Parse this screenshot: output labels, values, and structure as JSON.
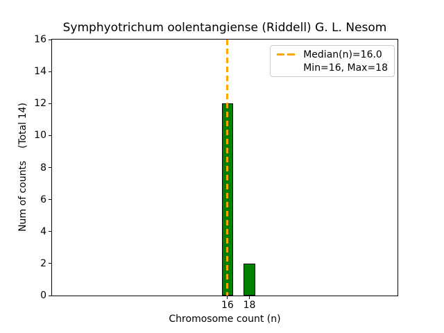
{
  "chart_data": {
    "type": "bar",
    "title": "Symphyotrichum oolentangiense (Riddell) G. L. Nesom",
    "xlabel": "Chromosome count (n)",
    "ylabel": "Num of counts    (Total 14)",
    "categories": [
      16,
      18
    ],
    "values": [
      12,
      2
    ],
    "total": 14,
    "bar_color": "#008000",
    "bar_edge_color": "#000000",
    "bar_width": 1.05,
    "xlim": [
      0,
      31.5
    ],
    "ylim": [
      0,
      16
    ],
    "xticks": [
      16,
      18
    ],
    "yticks": [
      0,
      2,
      4,
      6,
      8,
      10,
      12,
      14,
      16
    ],
    "grid": false,
    "background": "#ffffff",
    "median_line": {
      "x": 16,
      "value": 16.0,
      "color": "#FFA500",
      "style": "dashed"
    },
    "legend": {
      "position": "upper right",
      "entries": [
        {
          "label": "Median(n)=16.0",
          "handle": "dashed-line",
          "color": "#FFA500"
        },
        {
          "label": "Min=16, Max=18",
          "handle": "none"
        }
      ]
    }
  }
}
